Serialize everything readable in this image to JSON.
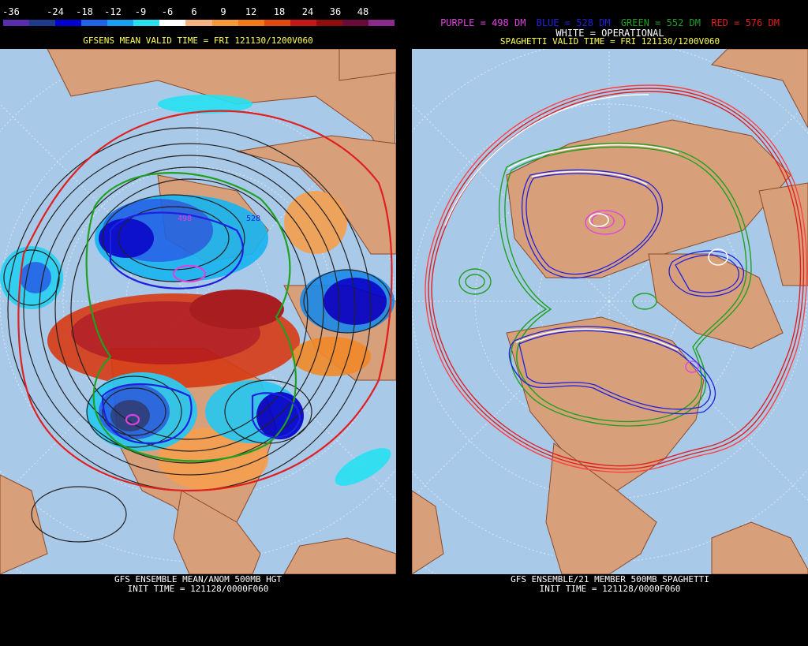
{
  "left": {
    "scale_labels": [
      "-36",
      "-24",
      "-18",
      "-12",
      "-9",
      "-6",
      "6",
      "9",
      "12",
      "18",
      "24",
      "36",
      "48"
    ],
    "scale_colors": [
      "#5a2db0",
      "#1e3a8a",
      "#0000d0",
      "#1e64e6",
      "#1aa0f0",
      "#28e0f0",
      "#ffffff",
      "#f7b380",
      "#f59a3a",
      "#f07a1a",
      "#e04a10",
      "#c41818",
      "#8e0e0e",
      "#6a0a3a",
      "#8a2a8a"
    ],
    "title": "GFSENS MEAN VALID TIME = FRI 121130/1200V060",
    "footer_line1": "GFS ENSEMBLE MEAN/ANOM 500MB HGT",
    "footer_line2": "INIT TIME = 121128/0000F060",
    "contour_labels": [
      "498",
      "528"
    ]
  },
  "right": {
    "legend": {
      "purple": "PURPLE = 498 DM",
      "blue": "BLUE = 528 DM",
      "green": "GREEN = 552 DM",
      "red": "RED = 576 DM",
      "white": "WHITE = OPERATIONAL"
    },
    "legend_colors": {
      "purple": "#e040e0",
      "blue": "#2020e0",
      "green": "#20a020",
      "red": "#e02020",
      "white": "#ffffff"
    },
    "title": "SPAGHETTI VALID TIME = FRI 121130/1200V060",
    "footer_line1": "GFS ENSEMBLE/21 MEMBER 500MB SPAGHETTI",
    "footer_line2": "INIT TIME = 121128/0000F060"
  },
  "colors": {
    "ocean": "#a9c9e9",
    "land": "#d8a07a",
    "border": "#8b4a2a"
  }
}
